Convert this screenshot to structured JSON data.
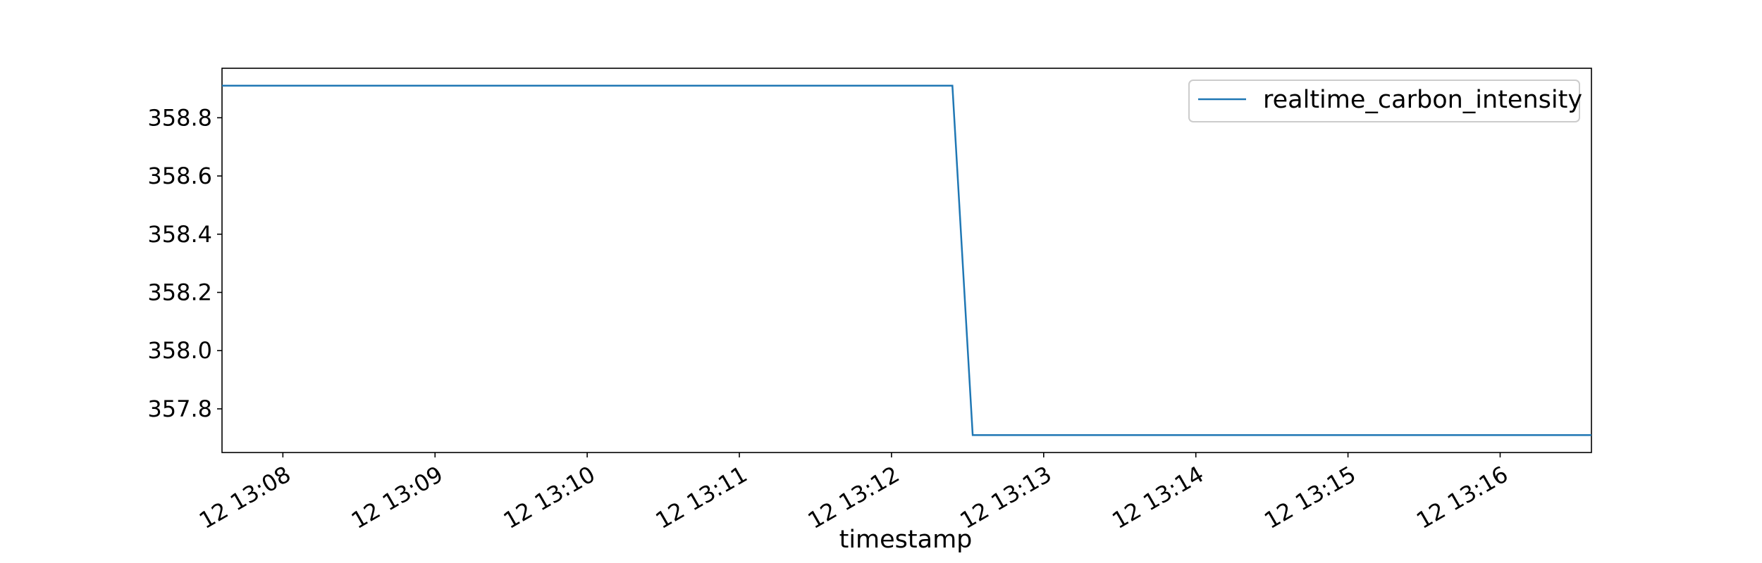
{
  "chart_data": {
    "type": "line",
    "title": "",
    "xlabel": "timestamp",
    "ylabel": "",
    "x_ticks": [
      "12 13:08",
      "12 13:09",
      "12 13:10",
      "12 13:11",
      "12 13:12",
      "12 13:13",
      "12 13:14",
      "12 13:15",
      "12 13:16"
    ],
    "y_ticks": [
      "357.8",
      "358.0",
      "358.2",
      "358.4",
      "358.6",
      "358.8"
    ],
    "ylim": [
      357.65,
      358.97
    ],
    "xlim": [
      "13:07:36",
      "13:16:36"
    ],
    "grid": false,
    "legend": {
      "position": "top-right"
    },
    "series": [
      {
        "name": "realtime_carbon_intensity",
        "color": "#1f77b4",
        "points": [
          {
            "t": "13:07:36",
            "y": 358.91
          },
          {
            "t": "13:12:24",
            "y": 358.91
          },
          {
            "t": "13:12:32",
            "y": 357.71
          },
          {
            "t": "13:16:36",
            "y": 357.71
          }
        ]
      }
    ]
  }
}
